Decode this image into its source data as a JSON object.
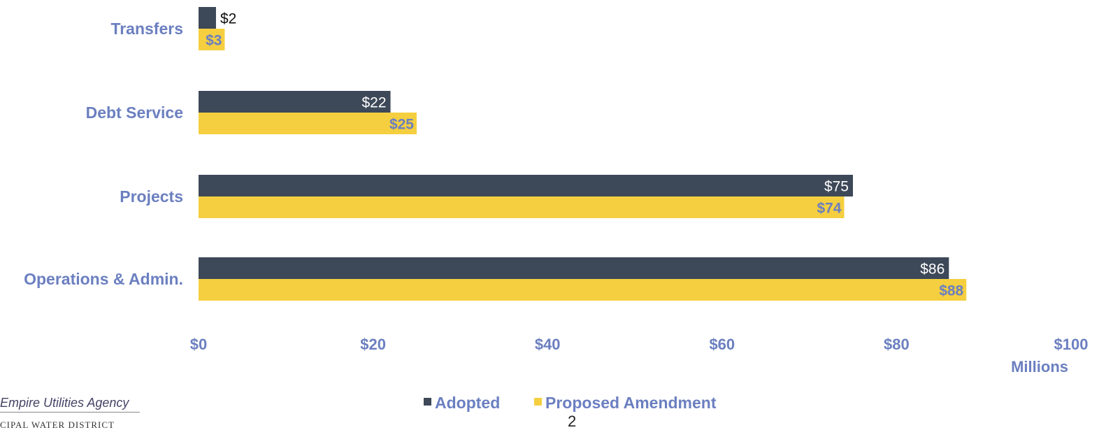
{
  "chart_data": {
    "type": "bar",
    "orientation": "horizontal",
    "categories": [
      "Transfers",
      "Debt Service",
      "Projects",
      "Operations & Admin."
    ],
    "series": [
      {
        "name": "Adopted",
        "values": [
          2,
          22,
          75,
          86
        ],
        "labels": [
          "$2",
          "$22",
          "$75",
          "$86"
        ],
        "color": "#3d4858"
      },
      {
        "name": "Proposed Amendment",
        "values": [
          3,
          25,
          74,
          88
        ],
        "labels": [
          "$3",
          "$25",
          "$74",
          "$88"
        ],
        "color": "#f5cf3f"
      }
    ],
    "xlim": [
      0,
      100
    ],
    "xticks": [
      0,
      20,
      40,
      60,
      80,
      100
    ],
    "xtick_labels": [
      "$0",
      "$20",
      "$40",
      "$60",
      "$80",
      "$100"
    ],
    "units_label": "Millions",
    "legend_position": "bottom-center",
    "label_color": "#6b7fc0",
    "grid": false
  },
  "footer": {
    "logo_line1": "Empire Utilities Agency",
    "logo_line2": "CIPAL WATER DISTRICT",
    "page_number": "2"
  }
}
